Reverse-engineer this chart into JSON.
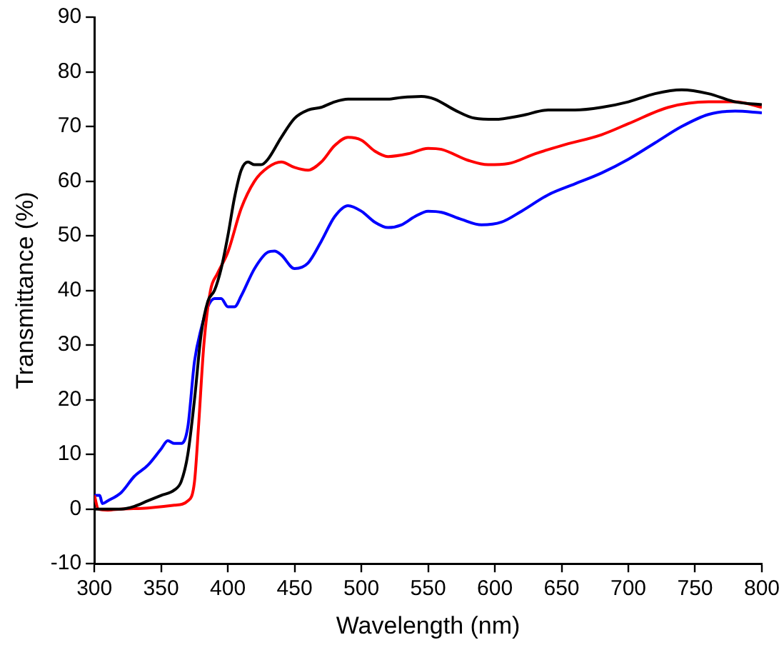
{
  "chart_data": {
    "type": "line",
    "xlabel": "Wavelength (nm)",
    "ylabel": "Transmittance (%)",
    "xlim": [
      300,
      800
    ],
    "ylim": [
      -10,
      90
    ],
    "xticks": [
      300,
      350,
      400,
      450,
      500,
      550,
      600,
      650,
      700,
      750,
      800
    ],
    "yticks": [
      -10,
      0,
      10,
      20,
      30,
      40,
      50,
      60,
      70,
      80,
      90
    ],
    "grid": false,
    "legend": false,
    "marker": "none",
    "line_style": "solid",
    "series": [
      {
        "color": "#000000",
        "x": [
          300,
          310,
          320,
          330,
          340,
          350,
          360,
          365,
          370,
          375,
          380,
          385,
          390,
          395,
          400,
          405,
          410,
          415,
          420,
          425,
          430,
          440,
          450,
          460,
          470,
          480,
          490,
          500,
          510,
          520,
          530,
          545,
          555,
          570,
          585,
          600,
          620,
          640,
          660,
          680,
          700,
          720,
          740,
          760,
          780,
          800
        ],
        "values": [
          0,
          0,
          0,
          0.5,
          1.5,
          2.5,
          3.5,
          5,
          10,
          20,
          32,
          38,
          40,
          44,
          50,
          57,
          62,
          63.5,
          63,
          63,
          64,
          68,
          71.5,
          73,
          73.5,
          74.5,
          75,
          75,
          75,
          75,
          75.3,
          75.5,
          75,
          73,
          71.5,
          71.3,
          72,
          73,
          73,
          73.5,
          74.5,
          76,
          76.7,
          76,
          74.5,
          74
        ]
      },
      {
        "color": "#ff0000",
        "x": [
          300,
          303,
          310,
          320,
          340,
          360,
          370,
          375,
          378,
          382,
          387,
          392,
          400,
          410,
          420,
          430,
          440,
          450,
          460,
          470,
          480,
          490,
          500,
          510,
          520,
          535,
          550,
          560,
          580,
          595,
          610,
          630,
          650,
          680,
          700,
          730,
          760,
          780,
          800
        ],
        "values": [
          2.5,
          0,
          -0.2,
          0,
          0.2,
          0.7,
          1.5,
          5,
          15,
          30,
          40,
          43,
          47,
          55,
          60,
          62.5,
          63.5,
          62.5,
          62,
          63.5,
          66.5,
          68,
          67.5,
          65.5,
          64.5,
          65,
          66,
          65.8,
          63.8,
          63,
          63.2,
          65,
          66.5,
          68.5,
          70.5,
          73.5,
          74.5,
          74.5,
          73.5
        ]
      },
      {
        "color": "#0000ff",
        "x": [
          300,
          304,
          306,
          310,
          320,
          330,
          340,
          350,
          355,
          360,
          365,
          370,
          375,
          380,
          385,
          390,
          395,
          400,
          405,
          410,
          420,
          430,
          435,
          440,
          450,
          460,
          470,
          480,
          490,
          500,
          510,
          520,
          530,
          540,
          550,
          560,
          575,
          590,
          605,
          620,
          640,
          660,
          680,
          700,
          720,
          740,
          760,
          780,
          800
        ],
        "values": [
          2.5,
          2.5,
          1,
          1.5,
          3,
          6,
          8,
          11,
          12.5,
          12,
          12,
          15,
          27,
          33,
          37,
          38.5,
          38.5,
          37,
          37,
          39,
          44,
          47,
          47.2,
          46.5,
          44,
          45,
          49,
          53.5,
          55.5,
          54.5,
          52.5,
          51.5,
          52,
          53.5,
          54.5,
          54.3,
          53,
          52,
          52.5,
          54.5,
          57.5,
          59.5,
          61.5,
          64,
          67,
          70,
          72.2,
          72.8,
          72.5
        ]
      }
    ]
  }
}
